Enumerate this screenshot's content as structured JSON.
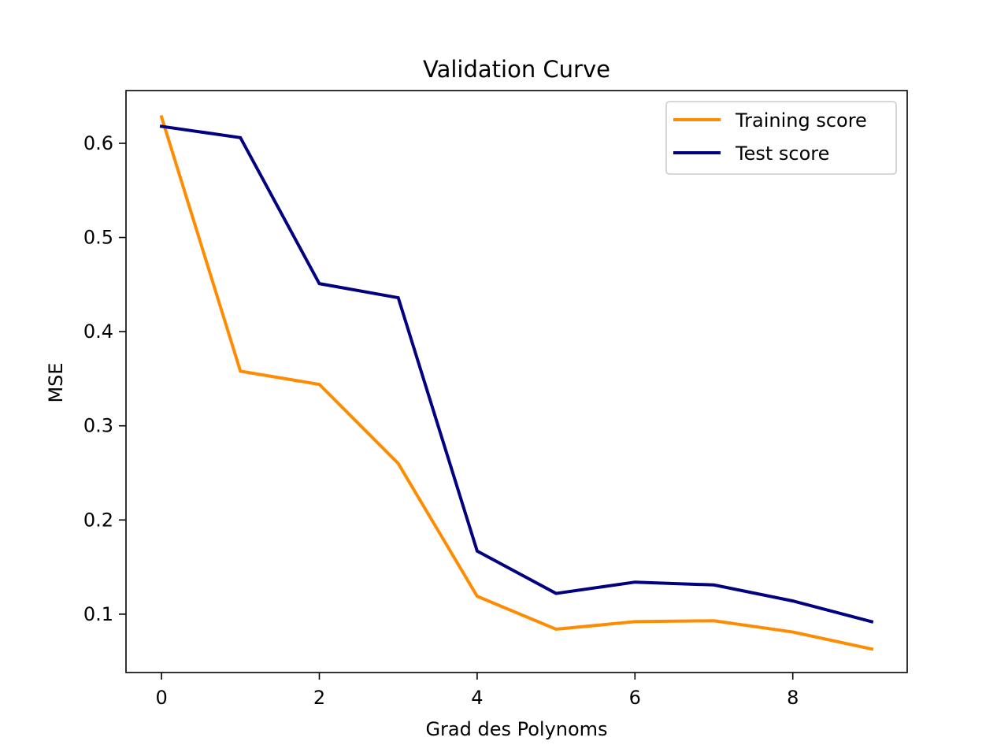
{
  "chart_data": {
    "type": "line",
    "title": "Validation Curve",
    "xlabel": "Grad des Polynoms",
    "ylabel": "MSE",
    "x": [
      0,
      1,
      2,
      3,
      4,
      5,
      6,
      7,
      8,
      9
    ],
    "series": [
      {
        "name": "Training score",
        "color": "#ff8c00",
        "values": [
          0.628,
          0.358,
          0.344,
          0.26,
          0.119,
          0.084,
          0.092,
          0.093,
          0.081,
          0.063
        ]
      },
      {
        "name": "Test score",
        "color": "#000080",
        "values": [
          0.618,
          0.606,
          0.451,
          0.436,
          0.167,
          0.122,
          0.134,
          0.131,
          0.114,
          0.092
        ]
      }
    ],
    "xlim": [
      -0.45,
      9.45
    ],
    "ylim": [
      0.038,
      0.656
    ],
    "xticks": [
      0,
      2,
      4,
      6,
      8
    ],
    "xtick_labels": [
      "0",
      "2",
      "4",
      "6",
      "8"
    ],
    "yticks": [
      0.1,
      0.2,
      0.3,
      0.4,
      0.5,
      0.6
    ],
    "ytick_labels": [
      "0.1",
      "0.2",
      "0.3",
      "0.4",
      "0.5",
      "0.6"
    ],
    "grid": false,
    "legend_position": "top-right"
  }
}
